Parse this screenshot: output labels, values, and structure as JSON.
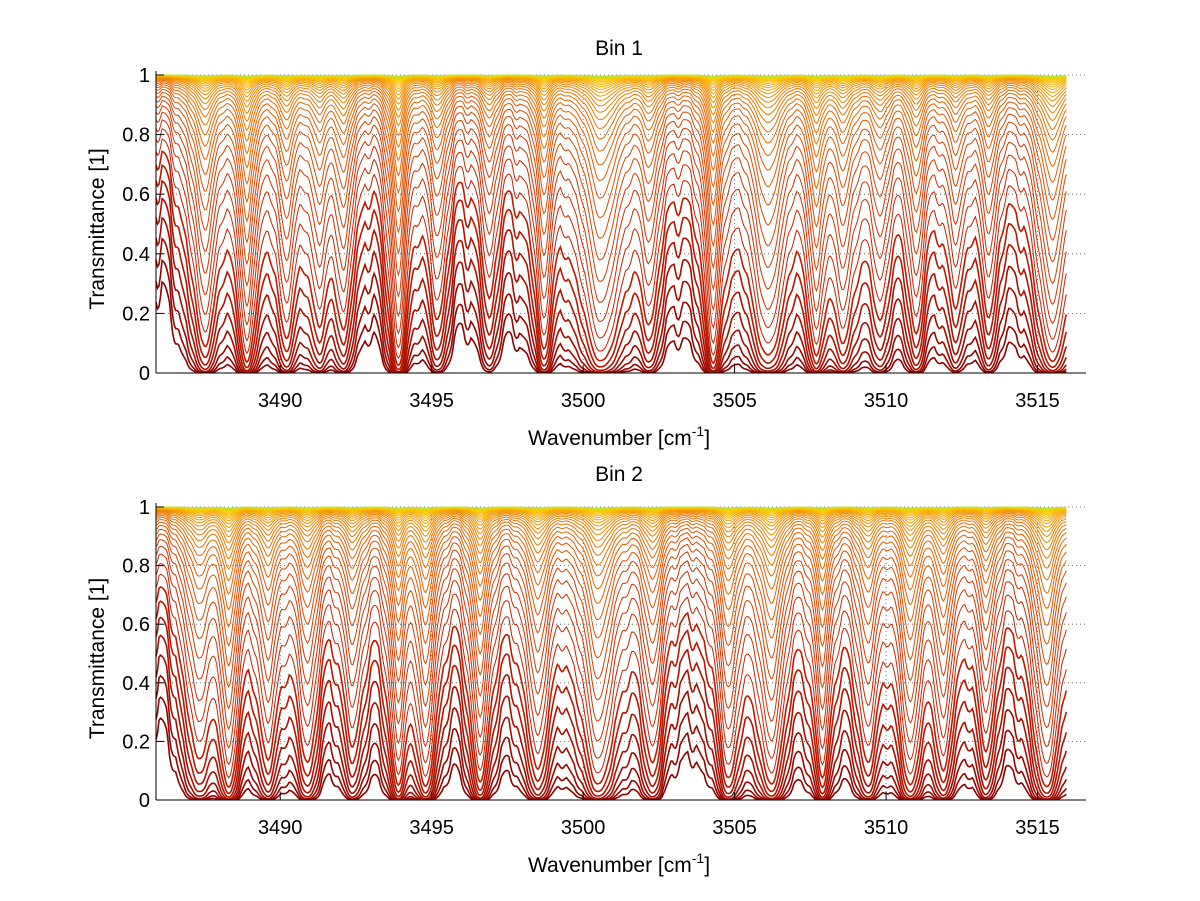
{
  "chart_data": [
    {
      "type": "line",
      "title": "Bin 1",
      "xlabel": "Wavenumber [cm",
      "xlabel_sup": "-1",
      "xlabel_end": "]",
      "ylabel": "Transmittance [1]",
      "xlim": [
        3485.9,
        3516.6
      ],
      "ylim": [
        0,
        1
      ],
      "xticks": [
        3490,
        3495,
        3500,
        3505,
        3510,
        3515
      ],
      "xtick_labels": [
        "3490",
        "3495",
        "3500",
        "3505",
        "3510",
        "3515"
      ],
      "yticks": [
        0,
        0.2,
        0.4,
        0.6,
        0.8,
        1
      ],
      "ytick_labels": [
        "0",
        "0.2",
        "0.4",
        "0.6",
        "0.8",
        "1"
      ],
      "grid": "dotted",
      "colormap": [
        "#8b0000",
        "#c81e00",
        "#e65a00",
        "#f08c00",
        "#ffc800",
        "#b4e632"
      ],
      "n_series": 42,
      "absorption_lines": [
        {
          "x": 3487.5,
          "strength": 0.7,
          "width": 0.35
        },
        {
          "x": 3488.9,
          "strength": 1.0,
          "width": 0.22
        },
        {
          "x": 3490.2,
          "strength": 0.55,
          "width": 0.3
        },
        {
          "x": 3491.3,
          "strength": 0.45,
          "width": 0.3
        },
        {
          "x": 3492.1,
          "strength": 0.5,
          "width": 0.25
        },
        {
          "x": 3493.9,
          "strength": 1.1,
          "width": 0.2
        },
        {
          "x": 3495.2,
          "strength": 0.45,
          "width": 0.3
        },
        {
          "x": 3496.9,
          "strength": 0.35,
          "width": 0.25
        },
        {
          "x": 3498.7,
          "strength": 0.7,
          "width": 0.22
        },
        {
          "x": 3500.6,
          "strength": 0.95,
          "width": 0.55
        },
        {
          "x": 3502.2,
          "strength": 0.4,
          "width": 0.3
        },
        {
          "x": 3504.3,
          "strength": 1.0,
          "width": 0.2
        },
        {
          "x": 3506.1,
          "strength": 0.85,
          "width": 0.45
        },
        {
          "x": 3507.7,
          "strength": 0.75,
          "width": 0.22
        },
        {
          "x": 3508.6,
          "strength": 0.6,
          "width": 0.3
        },
        {
          "x": 3509.8,
          "strength": 0.45,
          "width": 0.3
        },
        {
          "x": 3511.0,
          "strength": 0.55,
          "width": 0.25
        },
        {
          "x": 3512.3,
          "strength": 0.35,
          "width": 0.3
        },
        {
          "x": 3513.4,
          "strength": 0.4,
          "width": 0.3
        },
        {
          "x": 3515.5,
          "strength": 1.0,
          "width": 0.4
        }
      ]
    },
    {
      "type": "line",
      "title": "Bin 2",
      "xlabel": "Wavenumber [cm",
      "xlabel_sup": "-1",
      "xlabel_end": "]",
      "ylabel": "Transmittance [1]",
      "xlim": [
        3485.9,
        3516.6
      ],
      "ylim": [
        0,
        1
      ],
      "xticks": [
        3490,
        3495,
        3500,
        3505,
        3510,
        3515
      ],
      "xtick_labels": [
        "3490",
        "3495",
        "3500",
        "3505",
        "3510",
        "3515"
      ],
      "yticks": [
        0,
        0.2,
        0.4,
        0.6,
        0.8,
        1
      ],
      "ytick_labels": [
        "0",
        "0.2",
        "0.4",
        "0.6",
        "0.8",
        "1"
      ],
      "grid": "dotted",
      "colormap": [
        "#8b0000",
        "#c81e00",
        "#e65a00",
        "#f08c00",
        "#ffc800",
        "#b4e632"
      ],
      "n_series": 42,
      "absorption_lines": [
        {
          "x": 3487.3,
          "strength": 0.55,
          "width": 0.35
        },
        {
          "x": 3488.3,
          "strength": 0.9,
          "width": 0.25
        },
        {
          "x": 3489.6,
          "strength": 0.5,
          "width": 0.3
        },
        {
          "x": 3490.9,
          "strength": 0.55,
          "width": 0.3
        },
        {
          "x": 3492.4,
          "strength": 0.45,
          "width": 0.3
        },
        {
          "x": 3493.9,
          "strength": 0.8,
          "width": 0.22
        },
        {
          "x": 3494.8,
          "strength": 0.9,
          "width": 0.25
        },
        {
          "x": 3496.6,
          "strength": 0.8,
          "width": 0.25
        },
        {
          "x": 3498.5,
          "strength": 0.65,
          "width": 0.3
        },
        {
          "x": 3500.5,
          "strength": 0.85,
          "width": 0.45
        },
        {
          "x": 3502.3,
          "strength": 0.55,
          "width": 0.3
        },
        {
          "x": 3504.8,
          "strength": 0.7,
          "width": 0.3
        },
        {
          "x": 3506.2,
          "strength": 0.85,
          "width": 0.35
        },
        {
          "x": 3507.9,
          "strength": 0.7,
          "width": 0.22
        },
        {
          "x": 3509.4,
          "strength": 0.55,
          "width": 0.3
        },
        {
          "x": 3510.8,
          "strength": 0.85,
          "width": 0.3
        },
        {
          "x": 3511.9,
          "strength": 0.6,
          "width": 0.25
        },
        {
          "x": 3513.3,
          "strength": 0.45,
          "width": 0.3
        },
        {
          "x": 3515.3,
          "strength": 0.95,
          "width": 0.35
        }
      ]
    }
  ]
}
